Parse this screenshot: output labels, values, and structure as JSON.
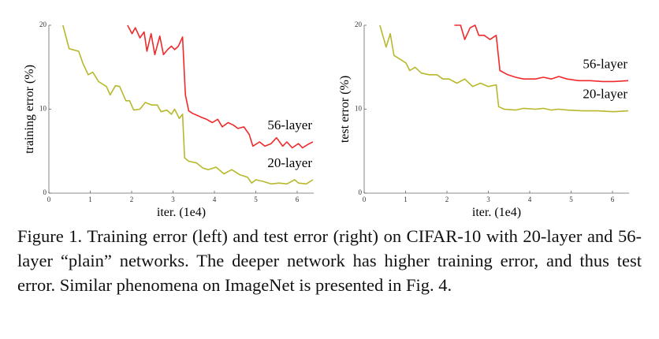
{
  "chart_data": [
    {
      "type": "line",
      "xlabel": "iter. (1e4)",
      "ylabel": "training error (%)",
      "xlim": [
        0,
        6.4
      ],
      "ylim": [
        0,
        20
      ],
      "xticks": [
        0,
        1,
        2,
        3,
        4,
        5,
        6
      ],
      "yticks": [
        0,
        10,
        20
      ],
      "series": [
        {
          "name": "56-layer",
          "color": "#f02a2a",
          "x": [
            1.9,
            2.01,
            2.09,
            2.2,
            2.3,
            2.37,
            2.47,
            2.56,
            2.68,
            2.77,
            2.87,
            2.96,
            3.04,
            3.13,
            3.23,
            3.3,
            3.38,
            3.47,
            3.57,
            3.7,
            3.81,
            3.95,
            4.08,
            4.19,
            4.33,
            4.46,
            4.57,
            4.71,
            4.84,
            4.93,
            5.09,
            5.22,
            5.37,
            5.5,
            5.65,
            5.75,
            5.88,
            6.03,
            6.13,
            6.26,
            6.38
          ],
          "values": [
            20,
            19,
            19.7,
            18.5,
            19.2,
            16.9,
            19,
            16.5,
            18.7,
            16.5,
            17.1,
            17.5,
            17.1,
            17.5,
            18.6,
            11.7,
            9.8,
            9.5,
            9.3,
            9,
            8.8,
            8.4,
            8.8,
            7.9,
            8.4,
            8.1,
            7.7,
            7.9,
            7,
            5.6,
            6.1,
            5.6,
            5.9,
            6.6,
            5.6,
            6.1,
            5.4,
            5.9,
            5.4,
            5.8,
            6.1
          ]
        },
        {
          "name": "20-layer",
          "color": "#b8b82c",
          "x": [
            0.34,
            0.49,
            0.72,
            0.82,
            0.95,
            1.06,
            1.2,
            1.39,
            1.48,
            1.61,
            1.71,
            1.86,
            1.95,
            2.05,
            2.2,
            2.33,
            2.49,
            2.62,
            2.71,
            2.85,
            2.96,
            3.04,
            3.15,
            3.23,
            3.28,
            3.38,
            3.57,
            3.72,
            3.85,
            4.04,
            4.23,
            4.42,
            4.61,
            4.8,
            4.9,
            5,
            5.18,
            5.37,
            5.56,
            5.75,
            5.94,
            6.03,
            6.22,
            6.38
          ],
          "values": [
            20,
            17.2,
            16.9,
            15.5,
            14.1,
            14.4,
            13.3,
            12.7,
            11.7,
            12.8,
            12.7,
            11,
            11,
            9.9,
            10,
            10.8,
            10.5,
            10.5,
            9.7,
            9.9,
            9.4,
            10,
            8.9,
            9.4,
            4.2,
            3.8,
            3.6,
            3,
            2.8,
            3.1,
            2.3,
            2.8,
            2.2,
            1.9,
            1.2,
            1.6,
            1.4,
            1.1,
            1.2,
            1.1,
            1.6,
            1.2,
            1.1,
            1.6
          ]
        }
      ]
    },
    {
      "type": "line",
      "xlabel": "iter. (1e4)",
      "ylabel": "test error (%)",
      "xlim": [
        0,
        6.4
      ],
      "ylim": [
        0,
        20
      ],
      "xticks": [
        0,
        1,
        2,
        3,
        4,
        5,
        6
      ],
      "yticks": [
        0,
        10,
        20
      ],
      "series": [
        {
          "name": "56-layer",
          "color": "#f02a2a",
          "x": [
            2.18,
            2.33,
            2.43,
            2.56,
            2.68,
            2.77,
            2.9,
            3.04,
            3.19,
            3.28,
            3.47,
            3.66,
            3.85,
            4.14,
            4.33,
            4.52,
            4.7,
            4.9,
            5.18,
            5.46,
            5.75,
            6.03,
            6.38
          ],
          "values": [
            20,
            20,
            18.3,
            19.7,
            20,
            18.8,
            18.8,
            18.3,
            18.8,
            14.6,
            14.1,
            13.8,
            13.6,
            13.6,
            13.8,
            13.6,
            13.9,
            13.6,
            13.4,
            13.4,
            13.3,
            13.3,
            13.4
          ]
        },
        {
          "name": "20-layer",
          "color": "#b8b82c",
          "x": [
            0.38,
            0.53,
            0.63,
            0.72,
            0.85,
            1.01,
            1.1,
            1.23,
            1.38,
            1.57,
            1.76,
            1.9,
            2.05,
            2.24,
            2.43,
            2.62,
            2.81,
            3,
            3.19,
            3.25,
            3.38,
            3.66,
            3.85,
            4.14,
            4.33,
            4.52,
            4.7,
            4.9,
            5.27,
            5.65,
            6.03,
            6.38
          ],
          "values": [
            20,
            17.4,
            19,
            16.4,
            16,
            15.5,
            14.6,
            15,
            14.3,
            14.1,
            14.1,
            13.6,
            13.6,
            13.1,
            13.6,
            12.7,
            13.1,
            12.7,
            12.9,
            10.3,
            10,
            9.9,
            10.1,
            10,
            10.1,
            9.9,
            10,
            9.9,
            9.8,
            9.8,
            9.7,
            9.8
          ]
        }
      ]
    }
  ],
  "caption": "Figure 1. Training error (left) and test error (right) on CIFAR-10 with 20-layer and 56-layer “plain” networks. The deeper network has higher training error, and thus test error. Similar phenomena on ImageNet is presented in Fig. 4."
}
